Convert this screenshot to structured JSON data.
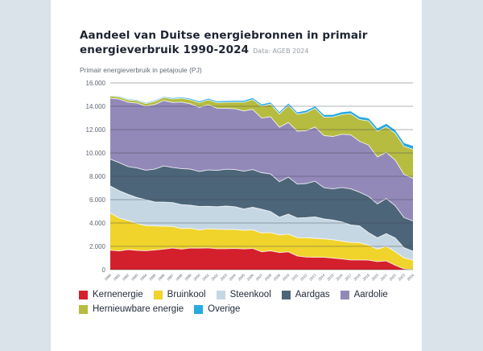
{
  "page": {
    "background_color": "#d9e3e9",
    "card_color": "#ffffff"
  },
  "header": {
    "title_line1": "Aandeel van Duitse energiebronnen in primair",
    "title_line2": "energieverbruik 1990-2024",
    "data_source": "Data: AGEB 2024",
    "subtitle": "Primair energieverbruik in petajoule (PJ)"
  },
  "chart_data": {
    "type": "area",
    "stacked": true,
    "title": "Aandeel van Duitse energiebronnen in primair energieverbruik 1990-2024",
    "subtitle": "Primair energieverbruik in petajoule (PJ)",
    "source": "Data: AGEB 2024",
    "xlabel": "",
    "ylabel": "PJ",
    "ylim": [
      0,
      16000
    ],
    "grid": true,
    "legend_position": "bottom",
    "y_ticks": [
      "16.000",
      "14.000",
      "12.000",
      "10.000",
      "8.000",
      "6.000",
      "4.000",
      "2.000",
      "0"
    ],
    "y_tick_values": [
      16000,
      14000,
      12000,
      10000,
      8000,
      6000,
      4000,
      2000,
      0
    ],
    "x": [
      "1990",
      "1991",
      "1992",
      "1993",
      "1994",
      "1995",
      "1996",
      "1997",
      "1998",
      "1999",
      "2000",
      "2001",
      "2002",
      "2003",
      "2004",
      "2005",
      "2006",
      "2007",
      "2008",
      "2009",
      "2010",
      "2011",
      "2012",
      "2013",
      "2014",
      "2015",
      "2016",
      "2017",
      "2018",
      "2019",
      "2020",
      "2021",
      "2022",
      "2023",
      "2024"
    ],
    "series": [
      {
        "name": "Kernenergie",
        "color": "#d4202c",
        "values": [
          1668,
          1608,
          1727,
          1656,
          1631,
          1682,
          1764,
          1858,
          1764,
          1852,
          1851,
          1868,
          1800,
          1801,
          1822,
          1779,
          1826,
          1533,
          1623,
          1472,
          1533,
          1178,
          1085,
          1061,
          1060,
          1001,
          927,
          833,
          833,
          819,
          700,
          750,
          380,
          76,
          0
        ]
      },
      {
        "name": "Bruinkool",
        "color": "#f0d32b",
        "values": [
          3201,
          2804,
          2486,
          2302,
          2142,
          2060,
          1962,
          1845,
          1752,
          1700,
          1550,
          1633,
          1663,
          1639,
          1629,
          1597,
          1580,
          1613,
          1554,
          1507,
          1512,
          1564,
          1645,
          1628,
          1573,
          1565,
          1521,
          1508,
          1481,
          1291,
          1058,
          1248,
          1160,
          940,
          820
        ]
      },
      {
        "name": "Steenkool",
        "color": "#c6d7e4",
        "values": [
          2306,
          2351,
          2240,
          2222,
          2224,
          2060,
          2063,
          2042,
          2059,
          1964,
          2021,
          1930,
          1928,
          2005,
          1944,
          1821,
          1949,
          2026,
          1800,
          1517,
          1714,
          1683,
          1730,
          1836,
          1717,
          1691,
          1651,
          1496,
          1442,
          1072,
          976,
          1090,
          1185,
          870,
          760
        ]
      },
      {
        "name": "Aardgas",
        "color": "#4d6579",
        "values": [
          2293,
          2400,
          2380,
          2528,
          2529,
          2812,
          3100,
          3010,
          3086,
          3095,
          2985,
          3115,
          3113,
          3159,
          3187,
          3236,
          3225,
          3135,
          3222,
          3043,
          3171,
          2912,
          2920,
          3057,
          2674,
          2665,
          2942,
          3090,
          2882,
          3100,
          2900,
          3000,
          2760,
          2576,
          2600
        ]
      },
      {
        "name": "Aardolie",
        "color": "#9289b9",
        "values": [
          5217,
          5450,
          5520,
          5560,
          5480,
          5540,
          5600,
          5570,
          5700,
          5600,
          5499,
          5577,
          5332,
          5218,
          5204,
          5166,
          5149,
          4678,
          4905,
          4669,
          4684,
          4525,
          4527,
          4638,
          4458,
          4491,
          4561,
          4629,
          4363,
          4400,
          4021,
          3961,
          3900,
          3700,
          3650
        ]
      },
      {
        "name": "Hernieuwbare energie",
        "color": "#b6bc3f",
        "values": [
          196,
          190,
          200,
          210,
          220,
          270,
          260,
          300,
          320,
          350,
          405,
          430,
          470,
          510,
          570,
          740,
          850,
          1030,
          1080,
          1130,
          1463,
          1450,
          1550,
          1600,
          1590,
          1669,
          1690,
          1800,
          1870,
          2061,
          2207,
          2197,
          2305,
          2410,
          2480
        ]
      },
      {
        "name": "Overige",
        "color": "#29a9e1",
        "values": [
          24,
          40,
          50,
          55,
          60,
          60,
          60,
          70,
          80,
          90,
          100,
          105,
          110,
          115,
          120,
          125,
          130,
          140,
          145,
          150,
          160,
          165,
          170,
          175,
          180,
          190,
          200,
          210,
          220,
          230,
          240,
          250,
          260,
          270,
          290
        ]
      }
    ]
  }
}
